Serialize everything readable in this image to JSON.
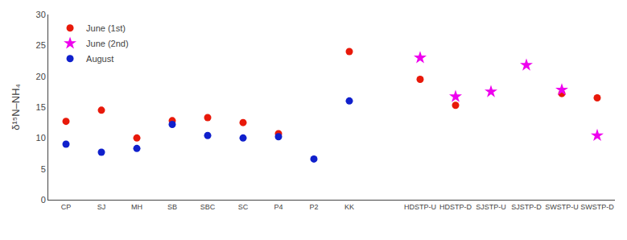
{
  "chart_data": {
    "type": "scatter",
    "categories": [
      "CP",
      "SJ",
      "MH",
      "SB",
      "SBC",
      "SC",
      "P4",
      "P2",
      "KK",
      null,
      "HDSTP-U",
      "HDSTP-D",
      "SJSTP-U",
      "SJSTP-D",
      "SWSTP-U",
      "SWSTP-D"
    ],
    "series": [
      {
        "name": "June (1st)",
        "color": "#e8190a",
        "marker": "circle",
        "values": [
          12.7,
          14.5,
          10.0,
          12.8,
          13.3,
          12.5,
          10.7,
          null,
          24.0,
          null,
          19.5,
          15.3,
          null,
          null,
          17.2,
          16.5
        ]
      },
      {
        "name": "June (2nd)",
        "color": "#ee00ee",
        "marker": "star",
        "values": [
          null,
          null,
          null,
          null,
          null,
          null,
          null,
          null,
          null,
          null,
          23.0,
          16.7,
          17.5,
          21.8,
          17.8,
          10.4
        ]
      },
      {
        "name": "August",
        "color": "#1020cc",
        "marker": "circle",
        "values": [
          9.0,
          7.7,
          8.3,
          12.2,
          10.4,
          10.0,
          10.2,
          6.6,
          16.0,
          null,
          null,
          null,
          null,
          null,
          null,
          null
        ]
      }
    ],
    "ylabel": "δ¹⁵N–NH₄",
    "ylim": [
      0,
      30
    ],
    "yticks": [
      0,
      5,
      10,
      15,
      20,
      25,
      30
    ],
    "grid": false,
    "legend": "upper left"
  }
}
